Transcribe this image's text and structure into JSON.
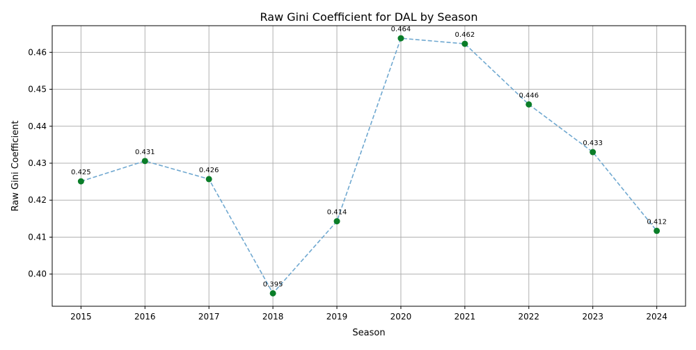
{
  "chart_data": {
    "type": "line",
    "title": "Raw Gini Coefficient for DAL by Season",
    "xlabel": "Season",
    "ylabel": "Raw Gini Coefficient",
    "x": [
      2015,
      2016,
      2017,
      2018,
      2019,
      2020,
      2021,
      2022,
      2023,
      2024
    ],
    "series": [
      {
        "values": [
          0.4251,
          0.4306,
          0.4257,
          0.3948,
          0.4143,
          0.4638,
          0.4623,
          0.4459,
          0.433,
          0.4117
        ],
        "labels": [
          "0.425",
          "0.431",
          "0.426",
          "0.395",
          "0.414",
          "0.464",
          "0.462",
          "0.446",
          "0.433",
          "0.412"
        ],
        "line_color": "#6fa8d0",
        "line_style": "dashed",
        "marker_color": "#0a7d28"
      }
    ],
    "x_ticks": [
      "2015",
      "2016",
      "2017",
      "2018",
      "2019",
      "2020",
      "2021",
      "2022",
      "2023",
      "2024"
    ],
    "y_ticks": [
      "0.40",
      "0.41",
      "0.42",
      "0.43",
      "0.44",
      "0.45",
      "0.46"
    ],
    "xlim": [
      2014.55,
      2024.45
    ],
    "ylim": [
      0.3913,
      0.4672
    ],
    "grid": true
  }
}
